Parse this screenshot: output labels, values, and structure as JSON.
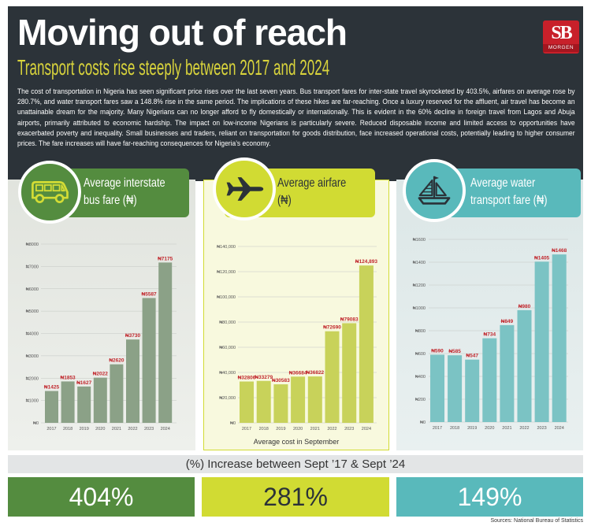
{
  "header": {
    "title": "Moving out of reach",
    "subtitle": "Transport costs rise steeply between 2017 and 2024",
    "body": "The cost of transportation in Nigeria has seen significant price rises over the last seven years. Bus transport fares for inter-state travel skyrocketed by 403.5%, airfares on average rose by 280.7%, and water transport fares saw a 148.8% rise in the same period. The implications of these hikes are far-reaching. Once a luxury reserved for the affluent, air travel has become an unattainable dream for the majority. Many Nigerians can no longer afford to fly domestically or internationally. This is evident in the 60% decline in foreign travel from Lagos and Abuja airports, primarily attributed to economic hardship. The impact on low-income Nigerians is particularly severe. Reduced disposable income and limited access to opportunities have exacerbated poverty and inequality. Small businesses and traders, reliant on transportation for goods distribution, face increased operational costs, potentially leading to higher consumer prices. The fare increases will have far-reaching consequences for Nigeria’s economy.",
    "logo": {
      "monogram": "SB",
      "wordmark": "MORGEN"
    }
  },
  "colors": {
    "header_bg": "#2c3339",
    "subtitle": "#d8d33c",
    "bus": "#548c3f",
    "air": "#d1db33",
    "water": "#59b9bb",
    "value_label": "#c1272d",
    "logo": "#c8202a"
  },
  "panels": [
    {
      "icon": "bus-icon"
    },
    {
      "icon": "airplane-icon"
    },
    {
      "icon": "sailboat-icon"
    }
  ],
  "chart_data": [
    {
      "type": "bar",
      "title_lines": [
        "Average interstate",
        "bus fare (₦)"
      ],
      "categories": [
        "2017",
        "2018",
        "2019",
        "2020",
        "2021",
        "2022",
        "2023",
        "2024"
      ],
      "values": [
        1425,
        1853,
        1627,
        2022,
        2620,
        3730,
        5587,
        7175
      ],
      "value_labels": [
        "₦1425",
        "₦1853",
        "₦1627",
        "₦2022",
        "₦2620",
        "₦3730",
        "₦5587",
        "₦7175"
      ],
      "ylim": [
        0,
        8000
      ],
      "yticks": [
        0,
        1000,
        2000,
        3000,
        4000,
        5000,
        6000,
        7000,
        8000
      ],
      "ytick_labels": [
        "₦0",
        "₦1000",
        "₦2000",
        "₦3000",
        "₦4000",
        "₦5000",
        "₦6000",
        "₦7000",
        "₦8000"
      ],
      "grid": true,
      "bar_color": "#8ba187"
    },
    {
      "type": "bar",
      "title_lines": [
        "Average airfare",
        "(₦)"
      ],
      "categories": [
        "2017",
        "2018",
        "2019",
        "2020",
        "2021",
        "2022",
        "2023",
        "2024"
      ],
      "values": [
        32806,
        33279,
        30583,
        36684,
        36822,
        72690,
        79083,
        124893
      ],
      "value_labels": [
        "₦32806",
        "₦33279",
        "₦30583",
        "₦36684",
        "₦36822",
        "₦72690",
        "₦79083",
        "₦124,893"
      ],
      "ylim": [
        0,
        140000
      ],
      "yticks": [
        0,
        20000,
        40000,
        60000,
        80000,
        100000,
        120000,
        140000
      ],
      "ytick_labels": [
        "₦0",
        "₦20,000",
        "₦40,000",
        "₦60,000",
        "₦80,000",
        "₦100,000",
        "₦120,000",
        "₦140,000"
      ],
      "grid": true,
      "caption": "Average cost in September",
      "bar_color": "#c8d25a"
    },
    {
      "type": "bar",
      "title_lines": [
        "Average water",
        "transport fare (₦)"
      ],
      "categories": [
        "2017",
        "2018",
        "2019",
        "2020",
        "2021",
        "2022",
        "2023",
        "2024"
      ],
      "values": [
        590,
        585,
        547,
        734,
        849,
        980,
        1405,
        1468
      ],
      "value_labels": [
        "₦590",
        "₦585",
        "₦547",
        "₦734",
        "₦849",
        "₦980",
        "₦1405",
        "₦1468"
      ],
      "ylim": [
        0,
        1600
      ],
      "yticks": [
        0,
        200,
        400,
        600,
        800,
        1000,
        1200,
        1400,
        1600
      ],
      "ytick_labels": [
        "₦0",
        "₦200",
        "₦400",
        "₦600",
        "₦800",
        "₦1000",
        "₦1200",
        "₦1400",
        "₦1600"
      ],
      "grid": true,
      "bar_color": "#7bc3c4"
    }
  ],
  "increase": {
    "heading": "(%) Increase between Sept ’17 & Sept ’24",
    "items": [
      {
        "value": "404%"
      },
      {
        "value": "281%"
      },
      {
        "value": "149%"
      }
    ]
  },
  "source": "Sources: National Bureau of Statistics"
}
